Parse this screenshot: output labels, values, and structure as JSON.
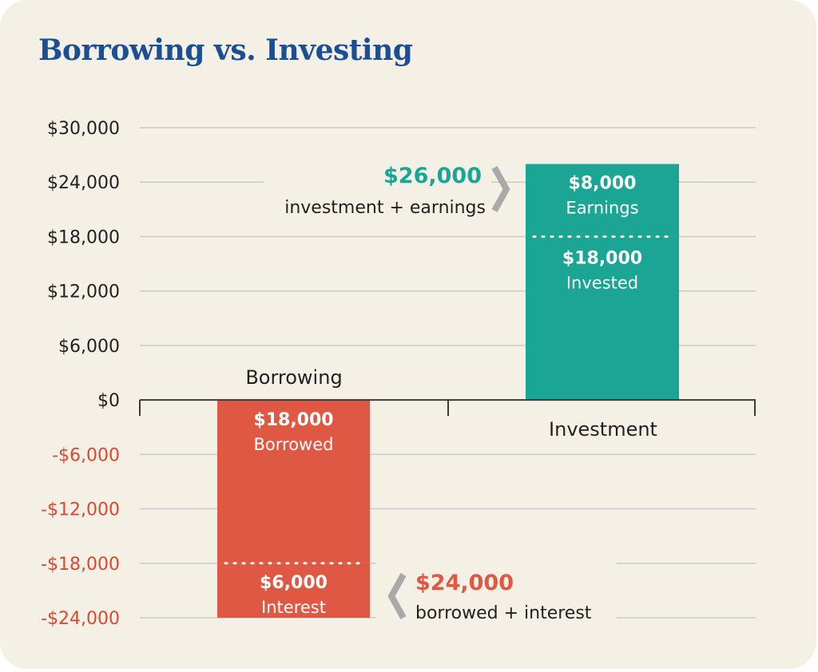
{
  "title": "Borrowing vs. Investing",
  "colors": {
    "title": "#1b4f93",
    "borrow": "#df5843",
    "invest": "#1aa595",
    "positive_tick": "#231f20",
    "negative_tick": "#d9492f",
    "chevron": "#a9a9a9",
    "grid": "#c9c9c9"
  },
  "chart_data": {
    "type": "bar",
    "stacked": true,
    "title": "Borrowing vs. Investing",
    "categories": [
      "Borrowing",
      "Investment"
    ],
    "ylim": [
      -24000,
      30000
    ],
    "yticks": [
      30000,
      24000,
      18000,
      12000,
      6000,
      0,
      -6000,
      -12000,
      -18000,
      -24000
    ],
    "ytick_labels": [
      "$30,000",
      "$24,000",
      "$18,000",
      "$12,000",
      "$6,000",
      "$0",
      "-$6,000",
      "-$12,000",
      "-$18,000",
      "-$24,000"
    ],
    "grid": true,
    "bars": [
      {
        "category": "Borrowing",
        "segments": [
          {
            "label": "Borrowed",
            "value": -18000,
            "value_label": "$18,000"
          },
          {
            "label": "Interest",
            "value": -6000,
            "value_label": "$6,000"
          }
        ],
        "total": -24000,
        "total_label": "$24,000",
        "total_caption": "borrowed + interest"
      },
      {
        "category": "Investment",
        "segments": [
          {
            "label": "Invested",
            "value": 18000,
            "value_label": "$18,000"
          },
          {
            "label": "Earnings",
            "value": 8000,
            "value_label": "$8,000"
          }
        ],
        "total": 26000,
        "total_label": "$26,000",
        "total_caption": "investment + earnings"
      }
    ]
  }
}
